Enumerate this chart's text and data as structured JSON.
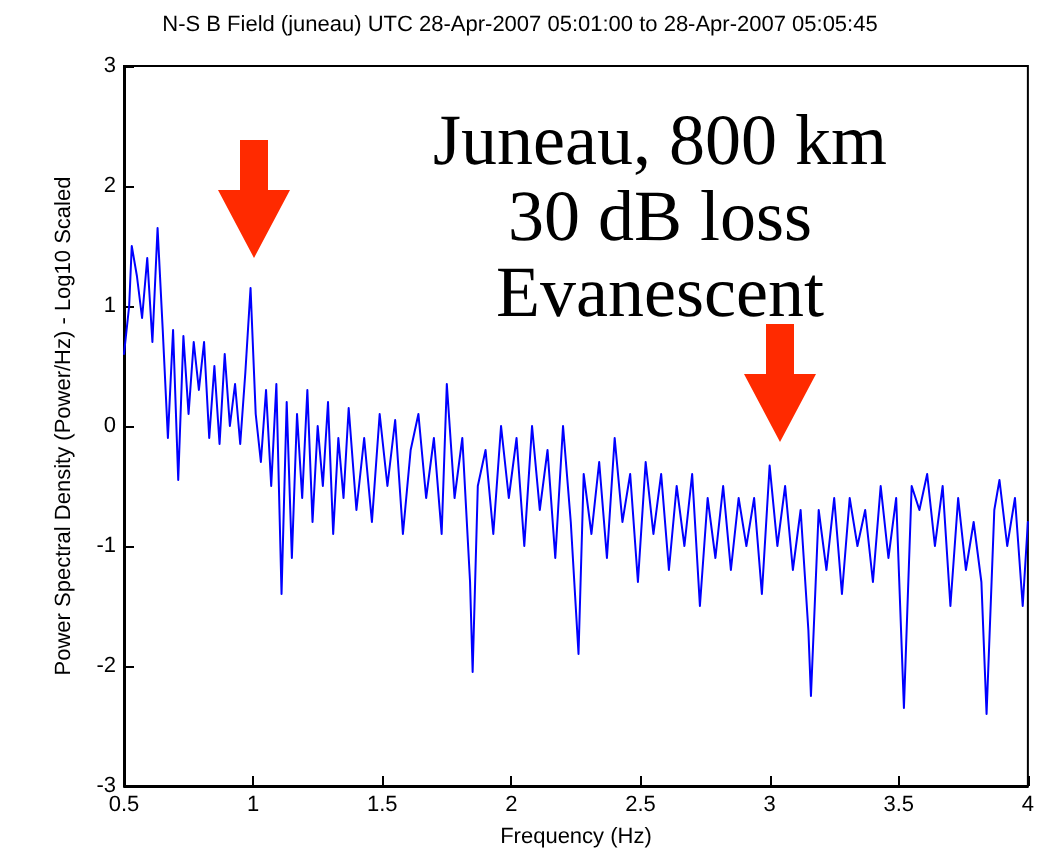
{
  "chart_data": {
    "type": "line",
    "title": "N-S B Field (juneau) UTC 28-Apr-2007 05:01:00 to 28-Apr-2007 05:05:45",
    "xlabel": "Frequency (Hz)",
    "ylabel": "Power Spectral Density (Power/Hz) - Log10 Scaled",
    "annotations": [
      "Juneau, 800 km",
      "30 dB loss",
      "Evanescent"
    ],
    "x": [
      0.5,
      0.52,
      0.53,
      0.55,
      0.57,
      0.59,
      0.61,
      0.63,
      0.65,
      0.67,
      0.69,
      0.71,
      0.73,
      0.75,
      0.77,
      0.79,
      0.81,
      0.83,
      0.85,
      0.87,
      0.89,
      0.91,
      0.93,
      0.95,
      0.97,
      0.99,
      1.01,
      1.03,
      1.05,
      1.07,
      1.09,
      1.11,
      1.13,
      1.15,
      1.17,
      1.19,
      1.21,
      1.23,
      1.25,
      1.27,
      1.29,
      1.31,
      1.33,
      1.35,
      1.37,
      1.4,
      1.43,
      1.46,
      1.49,
      1.52,
      1.55,
      1.58,
      1.61,
      1.64,
      1.67,
      1.7,
      1.73,
      1.75,
      1.78,
      1.81,
      1.84,
      1.85,
      1.87,
      1.9,
      1.93,
      1.96,
      1.99,
      2.02,
      2.05,
      2.08,
      2.11,
      2.14,
      2.17,
      2.2,
      2.23,
      2.26,
      2.28,
      2.31,
      2.34,
      2.37,
      2.4,
      2.43,
      2.46,
      2.49,
      2.52,
      2.55,
      2.58,
      2.61,
      2.64,
      2.67,
      2.7,
      2.73,
      2.76,
      2.79,
      2.82,
      2.85,
      2.88,
      2.91,
      2.94,
      2.97,
      3.0,
      3.03,
      3.06,
      3.09,
      3.12,
      3.15,
      3.16,
      3.19,
      3.22,
      3.25,
      3.28,
      3.31,
      3.34,
      3.37,
      3.4,
      3.43,
      3.46,
      3.49,
      3.52,
      3.55,
      3.58,
      3.61,
      3.64,
      3.67,
      3.7,
      3.73,
      3.76,
      3.79,
      3.82,
      3.84,
      3.87,
      3.89,
      3.92,
      3.95,
      3.98,
      4.0
    ],
    "series": [
      {
        "color": "#0000ff",
        "values": [
          0.6,
          1.0,
          1.5,
          1.25,
          0.9,
          1.4,
          0.7,
          1.65,
          0.8,
          -0.1,
          0.8,
          -0.45,
          0.75,
          0.1,
          0.7,
          0.3,
          0.7,
          -0.1,
          0.5,
          -0.15,
          0.6,
          0.0,
          0.35,
          -0.15,
          0.45,
          1.15,
          0.1,
          -0.3,
          0.3,
          -0.5,
          0.35,
          -1.4,
          0.2,
          -1.1,
          0.1,
          -0.6,
          0.3,
          -0.8,
          0.0,
          -0.5,
          0.2,
          -0.9,
          -0.1,
          -0.6,
          0.15,
          -0.7,
          -0.1,
          -0.8,
          0.1,
          -0.5,
          0.05,
          -0.9,
          -0.2,
          0.1,
          -0.6,
          -0.1,
          -0.9,
          0.35,
          -0.6,
          -0.1,
          -1.3,
          -2.05,
          -0.5,
          -0.2,
          -0.9,
          0.0,
          -0.6,
          -0.1,
          -1.0,
          0.0,
          -0.7,
          -0.2,
          -1.1,
          0.0,
          -0.8,
          -1.9,
          -0.4,
          -0.9,
          -0.3,
          -1.1,
          -0.1,
          -0.8,
          -0.4,
          -1.3,
          -0.3,
          -0.9,
          -0.4,
          -1.2,
          -0.5,
          -1.0,
          -0.4,
          -1.5,
          -0.6,
          -1.1,
          -0.5,
          -1.2,
          -0.6,
          -1.0,
          -0.6,
          -1.4,
          -0.33,
          -1.0,
          -0.5,
          -1.2,
          -0.7,
          -1.7,
          -2.25,
          -0.7,
          -1.2,
          -0.6,
          -1.4,
          -0.6,
          -1.0,
          -0.7,
          -1.3,
          -0.5,
          -1.1,
          -0.6,
          -2.35,
          -0.5,
          -0.7,
          -0.4,
          -1.0,
          -0.5,
          -1.5,
          -0.6,
          -1.2,
          -0.8,
          -1.3,
          -2.4,
          -0.7,
          -0.45,
          -1.0,
          -0.6,
          -1.5,
          -0.8
        ]
      }
    ],
    "xlim": [
      0.5,
      4
    ],
    "xticks": [
      0.5,
      1,
      1.5,
      2,
      2.5,
      3,
      3.5,
      4
    ],
    "ylim": [
      -3,
      3
    ],
    "yticks": [
      -3,
      -2,
      -1,
      0,
      1,
      2,
      3
    ],
    "grid": false,
    "marker": "none",
    "line_style": "solid"
  }
}
